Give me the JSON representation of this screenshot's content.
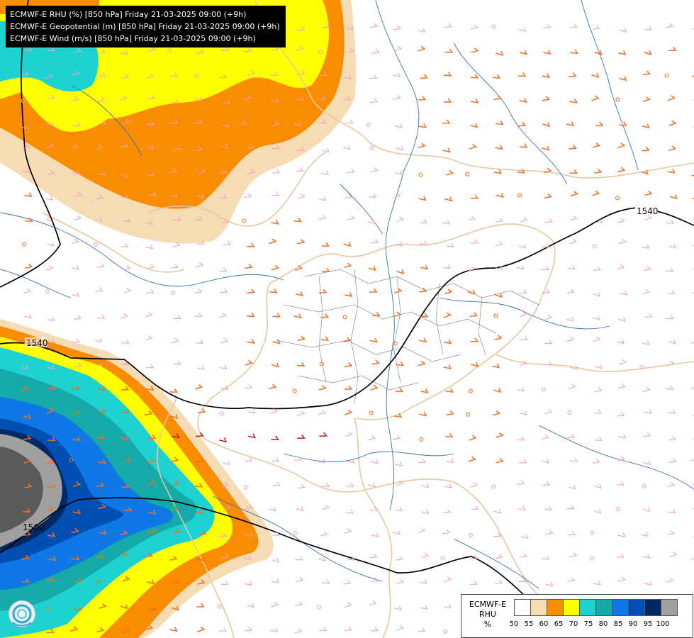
{
  "header": {
    "lines": [
      "ECMWF-E RHU (%) [850 hPa] Friday 21-03-2025 09:00 (+9h)",
      "ECMWF-E Geopotential (m) [850 hPa] Friday 21-03-2025 09:00 (+9h)",
      "ECMWF-E Wind (m/s) [850 hPa] Friday 21-03-2025 09:00 (+9h)"
    ]
  },
  "map": {
    "contour_labels": [
      "1540",
      "1540",
      "1560"
    ],
    "colors": {
      "background": "#ffffff",
      "country_border": "#e6c8a0",
      "river": "#3a6fb5",
      "admin_border": "#8c8c8c",
      "contour": "#000000",
      "wind_light": "#f2a2bb",
      "wind_orange": "#f07020",
      "wind_red": "#c01818"
    },
    "icons": [
      "wind-barb-icon",
      "calm-wind-icon",
      "logo-icon"
    ]
  },
  "legend": {
    "title_lines": [
      "ECMWF-E",
      "RHU",
      "%"
    ],
    "ticks": [
      "50",
      "55",
      "60",
      "65",
      "70",
      "75",
      "80",
      "85",
      "90",
      "95",
      "100"
    ],
    "colors": [
      "#ffffff",
      "#f5dcb4",
      "#fa8c00",
      "#ffff00",
      "#1ed2d2",
      "#14aaa8",
      "#0f78e6",
      "#0050b4",
      "#002864",
      "#a0a0a0",
      "#5a5a5a"
    ]
  }
}
